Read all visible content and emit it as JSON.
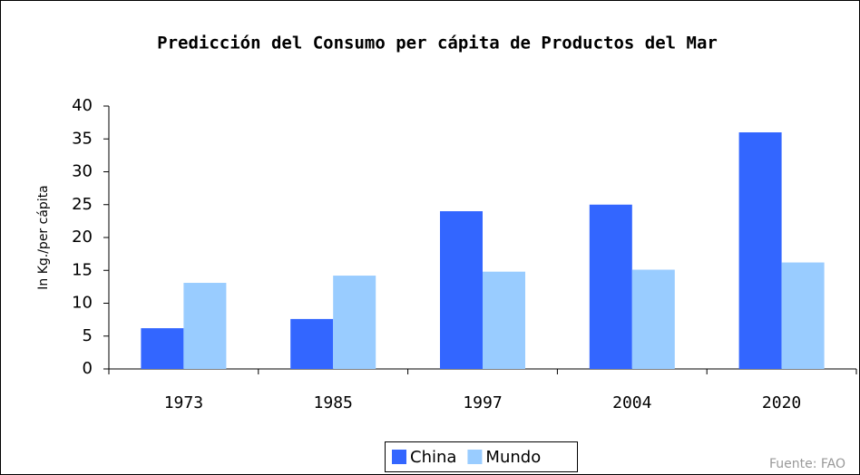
{
  "chart_data": {
    "type": "bar",
    "title": "Predicción del Consumo per cápita de Productos del Mar",
    "y_label": "In Kg./per cápita",
    "source": "Fuente: FAO",
    "categories": [
      "1973",
      "1985",
      "1997",
      "2004",
      "2020"
    ],
    "series": [
      {
        "name": "China",
        "color": "#3366ff",
        "values": [
          6.2,
          7.6,
          24,
          25,
          36
        ]
      },
      {
        "name": "Mundo",
        "color": "#99ccff",
        "values": [
          13.1,
          14.2,
          14.8,
          15.1,
          16.2
        ]
      }
    ],
    "ylim": [
      0,
      40
    ],
    "yticks": [
      0,
      5,
      10,
      15,
      20,
      25,
      30,
      35,
      40
    ],
    "legend": "bottom"
  }
}
